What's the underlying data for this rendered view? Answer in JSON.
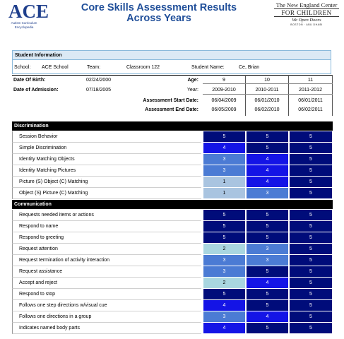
{
  "header": {
    "logo_text": "ACE",
    "logo_sub_1": "Autism Curriculum",
    "logo_sub_2": "Encyclopedia",
    "title_line1": "Core Skills Assessment Results",
    "title_line2": "Across Years",
    "org_line1": "The New England Center",
    "org_line2": "FOR CHILDREN",
    "org_line3": "We Open Doors",
    "org_line4": "BOSTON · ABU DHABI"
  },
  "student_info": {
    "heading": "Student Information",
    "school_label": "School:",
    "school_value": "ACE School",
    "team_label": "Team:",
    "team_value": "Classroom 122",
    "student_name_label": "Student Name:",
    "student_name_value": "Ce, Brian"
  },
  "details": {
    "dob_label": "Date Of Birth:",
    "dob_value": "02/24/2000",
    "doa_label": "Date of Admission:",
    "doa_value": "07/18/2005",
    "age_label": "Age:",
    "year_label": "Year:",
    "start_label": "Assessment Start Date:",
    "end_label": "Assessment End Date:",
    "columns": [
      {
        "age": "9",
        "year": "2009-2010",
        "start": "06/04/2009",
        "end": "06/05/2009"
      },
      {
        "age": "10",
        "year": "2010-2011",
        "start": "06/01/2010",
        "end": "06/02/2010"
      },
      {
        "age": "11",
        "year": "2011-2012",
        "start": "06/01/2011",
        "end": "06/02/2011"
      }
    ]
  },
  "colors": {
    "score_1": "#a9c4e0",
    "score_2": "#a9d6e0",
    "score_3": "#4b7bd4",
    "score_4": "#1414e6",
    "score_5": "#000c7a"
  },
  "sections": [
    {
      "title": "Discrimination",
      "rows": [
        {
          "label": "Session Behavior",
          "scores": [
            "5",
            "5",
            "5"
          ]
        },
        {
          "label": "Simple Discrimination",
          "scores": [
            "4",
            "5",
            "5"
          ]
        },
        {
          "label": "Identity Matching Objects",
          "scores": [
            "3",
            "4",
            "5"
          ]
        },
        {
          "label": "Identity Matching Pictures",
          "scores": [
            "3",
            "4",
            "5"
          ]
        },
        {
          "label": "Picture (S) Object (C) Matching",
          "scores": [
            "1",
            "4",
            "5"
          ]
        },
        {
          "label": "Object (S) Picture (C) Matching",
          "scores": [
            "1",
            "3",
            "5"
          ]
        }
      ]
    },
    {
      "title": "Communication",
      "rows": [
        {
          "label": "Requests needed items or actions",
          "scores": [
            "5",
            "5",
            "5"
          ]
        },
        {
          "label": "Respond to name",
          "scores": [
            "5",
            "5",
            "5"
          ]
        },
        {
          "label": "Respond to greeting",
          "scores": [
            "5",
            "5",
            "5"
          ]
        },
        {
          "label": "Request attention",
          "scores": [
            "2",
            "3",
            "5"
          ]
        },
        {
          "label": "Request termination of activity interaction",
          "scores": [
            "3",
            "3",
            "5"
          ]
        },
        {
          "label": "Request assistance",
          "scores": [
            "3",
            "5",
            "5"
          ]
        },
        {
          "label": "Accept and reject",
          "scores": [
            "2",
            "4",
            "5"
          ]
        },
        {
          "label": "Respond to stop",
          "scores": [
            "5",
            "5",
            "5"
          ]
        },
        {
          "label": "Follows one step directions w/visual cue",
          "scores": [
            "4",
            "5",
            "5"
          ]
        },
        {
          "label": "Follows one directions in a group",
          "scores": [
            "3",
            "4",
            "5"
          ]
        },
        {
          "label": "Indicates named body parts",
          "scores": [
            "4",
            "5",
            "5"
          ]
        }
      ]
    }
  ]
}
